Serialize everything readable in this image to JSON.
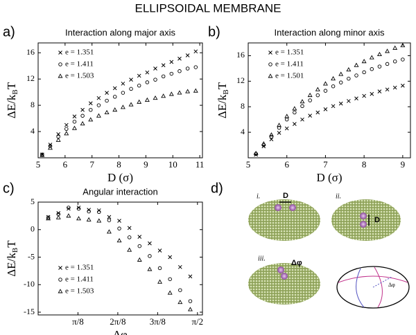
{
  "title": "ELLIPSOIDAL MEMBRANE",
  "panel_labels": [
    "a)",
    "b)",
    "c)",
    "d)"
  ],
  "chart_data": [
    {
      "type": "scatter",
      "title": "Interaction along major axis",
      "xlabel": "D (σ)",
      "ylabel": [
        "ΔE/k",
        "B",
        "T"
      ],
      "xlim": [
        5,
        11.1
      ],
      "ylim": [
        0,
        17.5
      ],
      "xticks": [
        5,
        6,
        7,
        8,
        9,
        10,
        11
      ],
      "yticks": [
        4,
        8,
        12,
        16
      ],
      "legend": "upper left",
      "series": [
        {
          "name": "e = 1.351",
          "marker": "x",
          "color": "#000000",
          "x": [
            5.15,
            5.45,
            5.75,
            6.05,
            6.35,
            6.65,
            6.95,
            7.25,
            7.55,
            7.85,
            8.15,
            8.45,
            8.75,
            9.05,
            9.35,
            9.65,
            9.95,
            10.25,
            10.55,
            10.85
          ],
          "values": [
            0.5,
            2.0,
            3.6,
            5.0,
            6.3,
            7.3,
            8.3,
            9.1,
            9.9,
            10.6,
            11.3,
            11.9,
            12.5,
            13.0,
            13.6,
            14.1,
            14.6,
            15.1,
            15.6,
            16.2
          ]
        },
        {
          "name": "e = 1.411",
          "marker": "o",
          "color": "#000000",
          "x": [
            5.15,
            5.45,
            5.75,
            6.05,
            6.35,
            6.65,
            6.95,
            7.25,
            7.55,
            7.85,
            8.15,
            8.45,
            8.75,
            9.05,
            9.35,
            9.65,
            9.95,
            10.25,
            10.55,
            10.85
          ],
          "values": [
            0.5,
            1.8,
            3.2,
            4.4,
            5.5,
            6.4,
            7.3,
            8.0,
            8.7,
            9.3,
            9.9,
            10.5,
            11.0,
            11.5,
            11.9,
            12.4,
            12.8,
            13.2,
            13.6,
            13.8
          ]
        },
        {
          "name": "e = 1.503",
          "marker": "^",
          "color": "#000000",
          "x": [
            5.15,
            5.45,
            5.75,
            6.05,
            6.35,
            6.65,
            6.95,
            7.25,
            7.55,
            7.85,
            8.15,
            8.45,
            8.75,
            9.05,
            9.35,
            9.65,
            9.95,
            10.25,
            10.55,
            10.85
          ],
          "values": [
            0.4,
            1.5,
            2.7,
            3.7,
            4.5,
            5.2,
            5.8,
            6.4,
            6.9,
            7.3,
            7.7,
            8.1,
            8.5,
            8.8,
            9.1,
            9.4,
            9.7,
            9.9,
            10.1,
            10.2
          ]
        }
      ]
    },
    {
      "type": "scatter",
      "title": "Interaction along minor axis",
      "xlabel": "D (σ)",
      "ylabel": [
        "ΔE/k",
        "B",
        "T"
      ],
      "xlim": [
        5,
        9.2
      ],
      "ylim": [
        0,
        18
      ],
      "xticks": [
        5,
        6,
        7,
        8,
        9
      ],
      "yticks": [
        4,
        8,
        12,
        16
      ],
      "legend": "upper left",
      "series": [
        {
          "name": "e = 1.351",
          "marker": "x",
          "color": "#000000",
          "x": [
            5.2,
            5.4,
            5.6,
            5.8,
            6.0,
            6.2,
            6.4,
            6.6,
            6.8,
            7.0,
            7.2,
            7.4,
            7.6,
            7.8,
            8.0,
            8.2,
            8.4,
            8.6,
            8.8,
            9.0
          ],
          "values": [
            0.5,
            1.8,
            2.9,
            3.9,
            4.6,
            5.3,
            6.0,
            6.6,
            7.1,
            7.6,
            8.1,
            8.5,
            8.9,
            9.3,
            9.7,
            10.0,
            10.4,
            10.7,
            11.0,
            11.3
          ]
        },
        {
          "name": "e = 1.411",
          "marker": "o",
          "color": "#000000",
          "x": [
            5.2,
            5.4,
            5.6,
            5.8,
            6.0,
            6.2,
            6.4,
            6.6,
            6.8,
            7.0,
            7.2,
            7.4,
            7.6,
            7.8,
            8.0,
            8.2,
            8.4,
            8.6,
            8.8,
            9.0
          ],
          "values": [
            0.6,
            2.0,
            3.3,
            4.7,
            6.0,
            7.1,
            8.1,
            9.0,
            9.8,
            10.5,
            11.2,
            11.8,
            12.4,
            12.9,
            13.4,
            13.9,
            14.3,
            14.7,
            15.1,
            15.4
          ]
        },
        {
          "name": "e = 1.501",
          "marker": "^",
          "color": "#000000",
          "x": [
            5.2,
            5.4,
            5.6,
            5.8,
            6.0,
            6.2,
            6.4,
            6.6,
            6.8,
            7.0,
            7.2,
            7.4,
            7.6,
            7.8,
            8.0,
            8.2,
            8.4,
            8.6,
            8.8,
            9.0
          ],
          "values": [
            0.7,
            2.2,
            3.6,
            5.1,
            6.5,
            7.7,
            8.8,
            9.8,
            10.7,
            11.6,
            12.4,
            13.1,
            13.8,
            14.5,
            15.1,
            15.7,
            16.2,
            16.7,
            17.2,
            17.6
          ]
        }
      ]
    },
    {
      "type": "scatter",
      "title": "Angular interaction",
      "xlabel": "Δφ",
      "ylabel": [
        "ΔE/k",
        "B",
        "T"
      ],
      "xlim": [
        0,
        1.62
      ],
      "ylim": [
        -15.5,
        5
      ],
      "xticks": [
        {
          "value": 0.3927,
          "label": "π/8"
        },
        {
          "value": 0.7854,
          "label": "2π/8"
        },
        {
          "value": 1.1781,
          "label": "3π/8"
        },
        {
          "value": 1.5708,
          "label": "π/2"
        }
      ],
      "yticks": [
        5,
        0,
        -5,
        -10,
        -15
      ],
      "legend": "lower left",
      "series": [
        {
          "name": "e = 1.351",
          "marker": "x",
          "color": "#000000",
          "x": [
            0.1,
            0.2,
            0.3,
            0.4,
            0.5,
            0.6,
            0.7,
            0.8,
            0.9,
            1.0,
            1.1,
            1.2,
            1.3,
            1.4,
            1.5
          ],
          "values": [
            2.3,
            3.0,
            3.8,
            4.0,
            3.6,
            3.5,
            2.3,
            1.6,
            0.3,
            -1.3,
            -2.5,
            -3.8,
            -5.0,
            -6.8,
            -8.5
          ]
        },
        {
          "name": "e = 1.411",
          "marker": "o",
          "color": "#000000",
          "x": [
            0.1,
            0.2,
            0.3,
            0.4,
            0.5,
            0.6,
            0.7,
            0.8,
            0.9,
            1.0,
            1.1,
            1.2,
            1.3,
            1.4,
            1.5
          ],
          "values": [
            2.2,
            2.8,
            4.0,
            3.8,
            3.3,
            3.2,
            1.7,
            0.2,
            -1.4,
            -3.0,
            -4.8,
            -7.0,
            -9.0,
            -11.0,
            -13.0
          ]
        },
        {
          "name": "e = 1.503",
          "marker": "^",
          "color": "#000000",
          "x": [
            0.1,
            0.2,
            0.3,
            0.4,
            0.5,
            0.6,
            0.7,
            0.8,
            0.9,
            1.0,
            1.1,
            1.2,
            1.3,
            1.4,
            1.5
          ],
          "values": [
            2.0,
            2.2,
            2.5,
            2.0,
            1.8,
            1.6,
            -0.4,
            -2.0,
            -3.7,
            -5.5,
            -7.2,
            -9.5,
            -11.5,
            -13.2,
            -14.5
          ]
        }
      ]
    }
  ],
  "illustration": {
    "labels": [
      "i.",
      "ii.",
      "iii.",
      "D",
      "D",
      "Δφ",
      "Δφ"
    ]
  }
}
